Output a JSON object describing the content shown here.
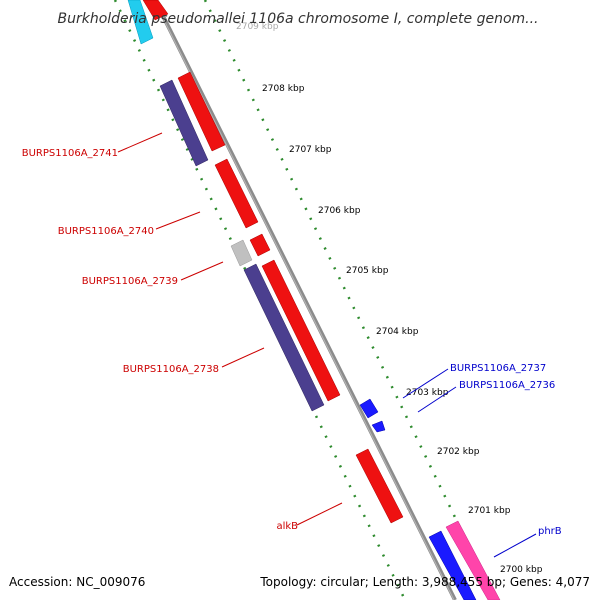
{
  "title": "Burkholderia pseudomallei 1106a chromosome I, complete genom...",
  "footer": {
    "accession": "Accession: NC_009076",
    "summary": "Topology: circular; Length: 3,988,455 bp; Genes: 4,077"
  },
  "colors": {
    "backbone": "#8c8c8c",
    "tick": "#2e8b2e",
    "red_label": "#cc0000",
    "blue_label": "#0000cc",
    "gene_red": "#ee1111",
    "gene_purple": "#4b3f8f",
    "gene_blue": "#1a1aff",
    "gene_gray": "#c0c0c0",
    "gene_cyan": "#22ccee",
    "gene_pink": "#ff44aa"
  },
  "scale_labels": [
    "2709 kbp",
    "2708 kbp",
    "2707 kbp",
    "2706 kbp",
    "2705 kbp",
    "2704 kbp",
    "2703 kbp",
    "2702 kbp",
    "2701 kbp",
    "2700 kbp"
  ],
  "gene_labels": [
    {
      "text": "BURPS1106A_2741",
      "color": "red"
    },
    {
      "text": "BURPS1106A_2740",
      "color": "red"
    },
    {
      "text": "BURPS1106A_2739",
      "color": "red"
    },
    {
      "text": "BURPS1106A_2738",
      "color": "red"
    },
    {
      "text": "alkB",
      "color": "red"
    },
    {
      "text": "BURPS1106A_2737",
      "color": "blue"
    },
    {
      "text": "BURPS1106A_2736",
      "color": "blue"
    },
    {
      "text": "phrB",
      "color": "blue"
    }
  ]
}
